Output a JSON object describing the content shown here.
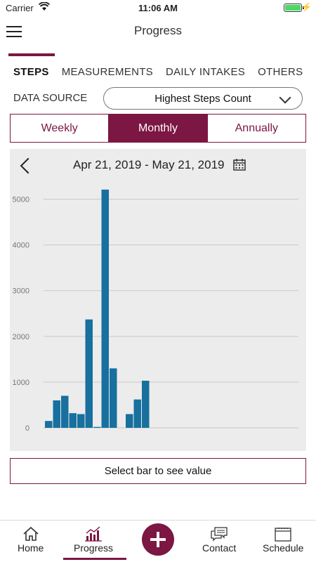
{
  "status_bar": {
    "carrier": "Carrier",
    "time": "11:06 AM"
  },
  "header": {
    "title": "Progress",
    "menu_icon": "hamburger-icon"
  },
  "tabs": [
    {
      "label": "STEPS",
      "active": true
    },
    {
      "label": "MEASUREMENTS",
      "active": false
    },
    {
      "label": "DAILY INTAKES",
      "active": false
    },
    {
      "label": "OTHERS",
      "active": false
    }
  ],
  "data_source": {
    "label": "DATA SOURCE",
    "selected": "Highest Steps Count"
  },
  "period": {
    "options": [
      "Weekly",
      "Monthly",
      "Annually"
    ],
    "selected": "Monthly"
  },
  "chart_header": {
    "date_range": "Apr 21, 2019 - May 21, 2019"
  },
  "chart_data": {
    "type": "bar",
    "title": "",
    "xlabel": "",
    "ylabel": "",
    "ylim": [
      0,
      5500
    ],
    "yticks": [
      0,
      1000,
      2000,
      3000,
      4000,
      5000
    ],
    "grid": true,
    "bar_color": "#17709e",
    "values": [
      150,
      600,
      700,
      320,
      300,
      2370,
      20,
      5210,
      1300,
      0,
      300,
      620,
      1030,
      0,
      0,
      0,
      0,
      0,
      0,
      0,
      0,
      0,
      0,
      0,
      0,
      0,
      0,
      0,
      0,
      0,
      0
    ]
  },
  "select_prompt": "Select bar to see value",
  "bottom_nav": {
    "items": [
      {
        "label": "Home",
        "icon": "home-icon"
      },
      {
        "label": "Progress",
        "icon": "progress-chart-icon",
        "active": true
      },
      {
        "label": "Contact",
        "icon": "chat-icon"
      },
      {
        "label": "Schedule",
        "icon": "calendar-icon"
      }
    ],
    "fab_icon": "plus-icon"
  },
  "colors": {
    "accent": "#7c1642",
    "bar": "#17709e",
    "panel": "#ececec"
  }
}
